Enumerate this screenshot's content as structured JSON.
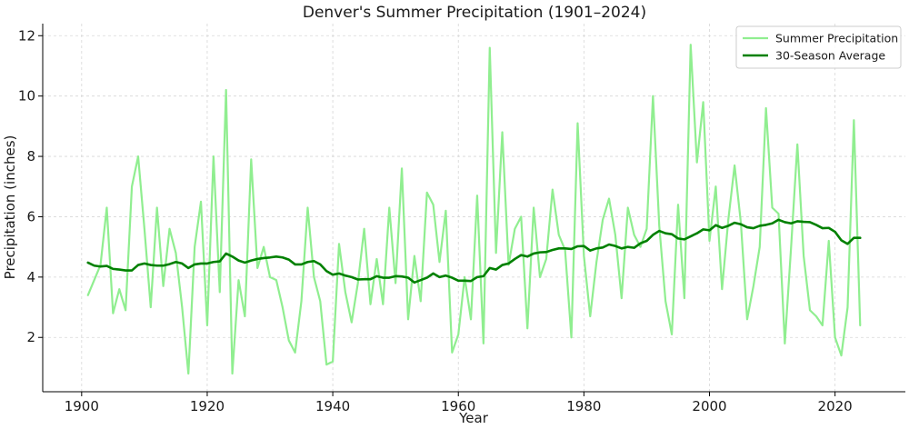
{
  "chart_data": {
    "type": "line",
    "title": "Denver's Summer Precipitation (1901–2024)",
    "xlabel": "Year",
    "ylabel": "Precipitation (inches)",
    "xlim": [
      1893.8,
      2031.2
    ],
    "ylim": [
      0.2,
      12.4
    ],
    "x_ticks": [
      1900,
      1920,
      1940,
      1960,
      1980,
      2000,
      2020
    ],
    "y_ticks": [
      2,
      4,
      6,
      8,
      10,
      12
    ],
    "grid": true,
    "legend_position": "top-right",
    "series": [
      {
        "name": "Summer Precipitation",
        "color": "#90ee90",
        "x_start": 1901,
        "values": [
          3.4,
          3.9,
          4.4,
          6.3,
          2.8,
          3.6,
          2.9,
          7.0,
          8.0,
          5.6,
          3.0,
          6.3,
          3.7,
          5.6,
          4.8,
          3.0,
          0.8,
          5.0,
          6.5,
          2.4,
          8.0,
          3.5,
          10.2,
          0.8,
          3.9,
          2.7,
          7.9,
          4.3,
          5.0,
          4.0,
          3.9,
          3.0,
          1.9,
          1.5,
          3.2,
          6.3,
          4.0,
          3.2,
          1.1,
          1.2,
          5.1,
          3.5,
          2.5,
          3.8,
          5.6,
          3.1,
          4.6,
          3.1,
          6.3,
          3.8,
          7.6,
          2.6,
          4.7,
          3.2,
          6.8,
          6.4,
          4.5,
          6.2,
          1.5,
          2.1,
          4.0,
          2.6,
          6.7,
          1.8,
          11.6,
          4.8,
          8.8,
          4.4,
          5.6,
          6.0,
          2.3,
          6.3,
          4.0,
          4.6,
          6.9,
          5.4,
          4.9,
          2.0,
          9.1,
          4.7,
          2.7,
          4.5,
          5.9,
          6.6,
          5.4,
          3.3,
          6.3,
          5.4,
          5.0,
          5.6,
          10.0,
          5.7,
          3.2,
          2.1,
          6.4,
          3.3,
          11.7,
          7.8,
          9.8,
          5.2,
          7.0,
          3.6,
          5.9,
          7.7,
          5.8,
          2.6,
          3.7,
          5.0,
          9.6,
          6.3,
          6.1,
          1.8,
          5.0,
          8.4,
          4.7,
          2.9,
          2.7,
          2.4,
          5.2,
          2.0,
          1.4,
          3.0,
          9.2,
          2.4
        ]
      },
      {
        "name": "30-Season Average",
        "color": "#008000",
        "x_start": 1901,
        "values": [
          4.48,
          4.38,
          4.35,
          4.37,
          4.27,
          4.25,
          4.22,
          4.22,
          4.4,
          4.45,
          4.4,
          4.38,
          4.38,
          4.43,
          4.5,
          4.45,
          4.3,
          4.42,
          4.45,
          4.45,
          4.5,
          4.52,
          4.78,
          4.68,
          4.55,
          4.48,
          4.55,
          4.6,
          4.63,
          4.65,
          4.68,
          4.65,
          4.58,
          4.42,
          4.42,
          4.5,
          4.53,
          4.42,
          4.2,
          4.08,
          4.12,
          4.05,
          4.0,
          3.92,
          3.93,
          3.93,
          4.03,
          3.98,
          3.98,
          4.03,
          4.02,
          3.98,
          3.82,
          3.9,
          3.98,
          4.12,
          4.0,
          4.05,
          3.98,
          3.88,
          3.88,
          3.87,
          4.0,
          4.03,
          4.3,
          4.25,
          4.4,
          4.45,
          4.6,
          4.73,
          4.68,
          4.78,
          4.82,
          4.83,
          4.9,
          4.95,
          4.95,
          4.93,
          5.02,
          5.03,
          4.88,
          4.95,
          4.98,
          5.08,
          5.03,
          4.95,
          5.0,
          4.97,
          5.12,
          5.2,
          5.4,
          5.53,
          5.45,
          5.42,
          5.28,
          5.25,
          5.35,
          5.45,
          5.58,
          5.55,
          5.72,
          5.63,
          5.7,
          5.8,
          5.75,
          5.65,
          5.62,
          5.7,
          5.73,
          5.78,
          5.9,
          5.82,
          5.78,
          5.85,
          5.83,
          5.82,
          5.73,
          5.62,
          5.63,
          5.5,
          5.22,
          5.1,
          5.3,
          5.3
        ]
      }
    ]
  }
}
